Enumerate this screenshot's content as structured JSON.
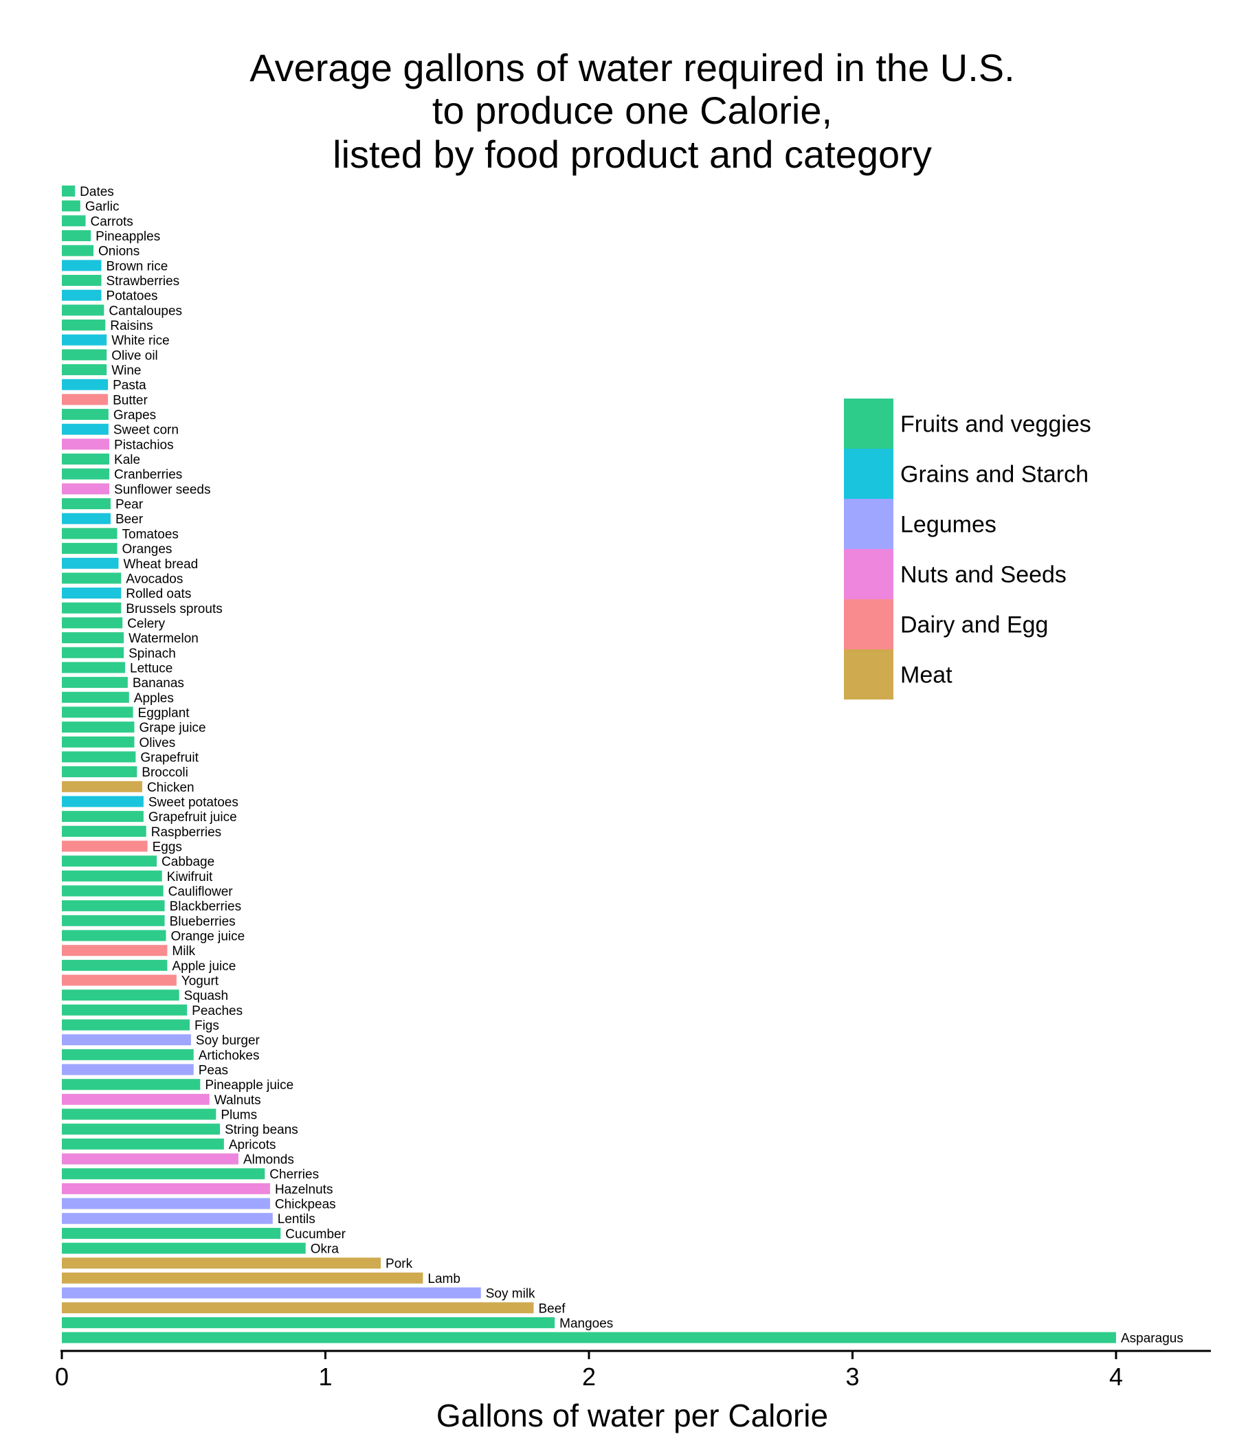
{
  "chart_data": {
    "type": "bar",
    "orientation": "horizontal",
    "title_lines": [
      "Average gallons of water required in the U.S.",
      "to produce one Calorie,",
      "listed by food product and category"
    ],
    "xlabel": "Gallons of water per Calorie",
    "ylabel": "",
    "xlim": [
      0,
      4.3
    ],
    "xticks": [
      0,
      1,
      2,
      3,
      4
    ],
    "grid": false,
    "legend_position": "right",
    "categories": [
      {
        "name": "Fruits and veggies",
        "color": "#2ECC8A"
      },
      {
        "name": "Grains and Starch",
        "color": "#1BC4DD"
      },
      {
        "name": "Legumes",
        "color": "#9FA6FF"
      },
      {
        "name": "Nuts and Seeds",
        "color": "#EE86DD"
      },
      {
        "name": "Dairy and Egg",
        "color": "#F98B8F"
      },
      {
        "name": "Meat",
        "color": "#CFAA4F"
      }
    ],
    "items": [
      {
        "label": "Dates",
        "value": 0.05,
        "category": "Fruits and veggies"
      },
      {
        "label": "Garlic",
        "value": 0.07,
        "category": "Fruits and veggies"
      },
      {
        "label": "Carrots",
        "value": 0.09,
        "category": "Fruits and veggies"
      },
      {
        "label": "Pineapples",
        "value": 0.11,
        "category": "Fruits and veggies"
      },
      {
        "label": "Onions",
        "value": 0.12,
        "category": "Fruits and veggies"
      },
      {
        "label": "Brown rice",
        "value": 0.15,
        "category": "Grains and Starch"
      },
      {
        "label": "Strawberries",
        "value": 0.15,
        "category": "Fruits and veggies"
      },
      {
        "label": "Potatoes",
        "value": 0.15,
        "category": "Grains and Starch"
      },
      {
        "label": "Cantaloupes",
        "value": 0.16,
        "category": "Fruits and veggies"
      },
      {
        "label": "Raisins",
        "value": 0.165,
        "category": "Fruits and veggies"
      },
      {
        "label": "White rice",
        "value": 0.17,
        "category": "Grains and Starch"
      },
      {
        "label": "Olive oil",
        "value": 0.17,
        "category": "Fruits and veggies"
      },
      {
        "label": "Wine",
        "value": 0.17,
        "category": "Fruits and veggies"
      },
      {
        "label": "Pasta",
        "value": 0.175,
        "category": "Grains and Starch"
      },
      {
        "label": "Butter",
        "value": 0.175,
        "category": "Dairy and Egg"
      },
      {
        "label": "Grapes",
        "value": 0.177,
        "category": "Fruits and veggies"
      },
      {
        "label": "Sweet corn",
        "value": 0.177,
        "category": "Grains and Starch"
      },
      {
        "label": "Pistachios",
        "value": 0.18,
        "category": "Nuts and Seeds"
      },
      {
        "label": "Kale",
        "value": 0.18,
        "category": "Fruits and veggies"
      },
      {
        "label": "Cranberries",
        "value": 0.18,
        "category": "Fruits and veggies"
      },
      {
        "label": "Sunflower seeds",
        "value": 0.18,
        "category": "Nuts and Seeds"
      },
      {
        "label": "Pear",
        "value": 0.185,
        "category": "Fruits and veggies"
      },
      {
        "label": "Beer",
        "value": 0.185,
        "category": "Grains and Starch"
      },
      {
        "label": "Tomatoes",
        "value": 0.21,
        "category": "Fruits and veggies"
      },
      {
        "label": "Oranges",
        "value": 0.21,
        "category": "Fruits and veggies"
      },
      {
        "label": "Wheat bread",
        "value": 0.215,
        "category": "Grains and Starch"
      },
      {
        "label": "Avocados",
        "value": 0.225,
        "category": "Fruits and veggies"
      },
      {
        "label": "Rolled oats",
        "value": 0.225,
        "category": "Grains and Starch"
      },
      {
        "label": "Brussels sprouts",
        "value": 0.225,
        "category": "Fruits and veggies"
      },
      {
        "label": "Celery",
        "value": 0.23,
        "category": "Fruits and veggies"
      },
      {
        "label": "Watermelon",
        "value": 0.235,
        "category": "Fruits and veggies"
      },
      {
        "label": "Spinach",
        "value": 0.235,
        "category": "Fruits and veggies"
      },
      {
        "label": "Lettuce",
        "value": 0.24,
        "category": "Fruits and veggies"
      },
      {
        "label": "Bananas",
        "value": 0.25,
        "category": "Fruits and veggies"
      },
      {
        "label": "Apples",
        "value": 0.255,
        "category": "Fruits and veggies"
      },
      {
        "label": "Eggplant",
        "value": 0.27,
        "category": "Fruits and veggies"
      },
      {
        "label": "Grape juice",
        "value": 0.275,
        "category": "Fruits and veggies"
      },
      {
        "label": "Olives",
        "value": 0.275,
        "category": "Fruits and veggies"
      },
      {
        "label": "Grapefruit",
        "value": 0.28,
        "category": "Fruits and veggies"
      },
      {
        "label": "Broccoli",
        "value": 0.285,
        "category": "Fruits and veggies"
      },
      {
        "label": "Chicken",
        "value": 0.305,
        "category": "Meat"
      },
      {
        "label": "Sweet potatoes",
        "value": 0.31,
        "category": "Grains and Starch"
      },
      {
        "label": "Grapefruit juice",
        "value": 0.31,
        "category": "Fruits and veggies"
      },
      {
        "label": "Raspberries",
        "value": 0.32,
        "category": "Fruits and veggies"
      },
      {
        "label": "Eggs",
        "value": 0.325,
        "category": "Dairy and Egg"
      },
      {
        "label": "Cabbage",
        "value": 0.36,
        "category": "Fruits and veggies"
      },
      {
        "label": "Kiwifruit",
        "value": 0.38,
        "category": "Fruits and veggies"
      },
      {
        "label": "Cauliflower",
        "value": 0.385,
        "category": "Fruits and veggies"
      },
      {
        "label": "Blackberries",
        "value": 0.39,
        "category": "Fruits and veggies"
      },
      {
        "label": "Blueberries",
        "value": 0.39,
        "category": "Fruits and veggies"
      },
      {
        "label": "Orange juice",
        "value": 0.395,
        "category": "Fruits and veggies"
      },
      {
        "label": "Milk",
        "value": 0.4,
        "category": "Dairy and Egg"
      },
      {
        "label": "Apple juice",
        "value": 0.4,
        "category": "Fruits and veggies"
      },
      {
        "label": "Yogurt",
        "value": 0.435,
        "category": "Dairy and Egg"
      },
      {
        "label": "Squash",
        "value": 0.445,
        "category": "Fruits and veggies"
      },
      {
        "label": "Peaches",
        "value": 0.475,
        "category": "Fruits and veggies"
      },
      {
        "label": "Figs",
        "value": 0.485,
        "category": "Fruits and veggies"
      },
      {
        "label": "Soy burger",
        "value": 0.49,
        "category": "Legumes"
      },
      {
        "label": "Artichokes",
        "value": 0.5,
        "category": "Fruits and veggies"
      },
      {
        "label": "Peas",
        "value": 0.5,
        "category": "Legumes"
      },
      {
        "label": "Pineapple juice",
        "value": 0.525,
        "category": "Fruits and veggies"
      },
      {
        "label": "Walnuts",
        "value": 0.56,
        "category": "Nuts and Seeds"
      },
      {
        "label": "Plums",
        "value": 0.585,
        "category": "Fruits and veggies"
      },
      {
        "label": "String beans",
        "value": 0.6,
        "category": "Fruits and veggies"
      },
      {
        "label": "Apricots",
        "value": 0.615,
        "category": "Fruits and veggies"
      },
      {
        "label": "Almonds",
        "value": 0.67,
        "category": "Nuts and Seeds"
      },
      {
        "label": "Cherries",
        "value": 0.77,
        "category": "Fruits and veggies"
      },
      {
        "label": "Hazelnuts",
        "value": 0.79,
        "category": "Nuts and Seeds"
      },
      {
        "label": "Chickpeas",
        "value": 0.79,
        "category": "Legumes"
      },
      {
        "label": "Lentils",
        "value": 0.8,
        "category": "Legumes"
      },
      {
        "label": "Cucumber",
        "value": 0.83,
        "category": "Fruits and veggies"
      },
      {
        "label": "Okra",
        "value": 0.925,
        "category": "Fruits and veggies"
      },
      {
        "label": "Pork",
        "value": 1.21,
        "category": "Meat"
      },
      {
        "label": "Lamb",
        "value": 1.37,
        "category": "Meat"
      },
      {
        "label": "Soy milk",
        "value": 1.59,
        "category": "Legumes"
      },
      {
        "label": "Beef",
        "value": 1.79,
        "category": "Meat"
      },
      {
        "label": "Mangoes",
        "value": 1.87,
        "category": "Fruits and veggies"
      },
      {
        "label": "Asparagus",
        "value": 4.0,
        "category": "Fruits and veggies"
      }
    ]
  }
}
